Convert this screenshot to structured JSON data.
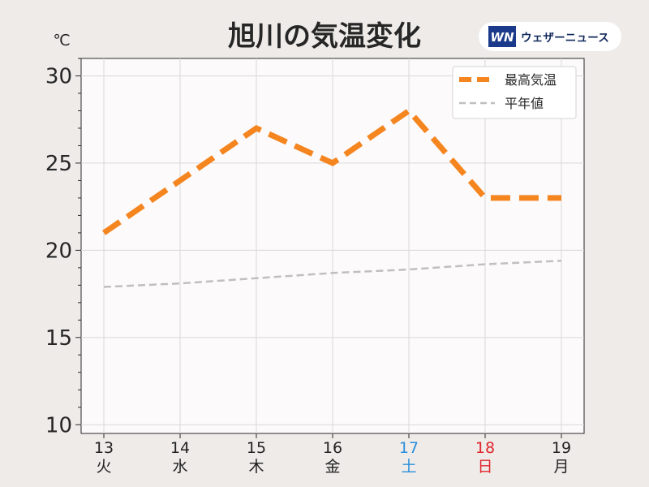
{
  "brand": {
    "name": "ウェザーニュース",
    "logo_text": "WN",
    "logo_color": "#1b3a8c"
  },
  "chart_data": {
    "type": "line",
    "title": "旭川の気温変化",
    "unit": "℃",
    "ylim": [
      9.5,
      31
    ],
    "yticks": [
      10,
      15,
      20,
      25,
      30
    ],
    "grid": true,
    "legend_position": "top-right",
    "categories": [
      {
        "day": "13",
        "weekday": "火",
        "color": "#222222"
      },
      {
        "day": "14",
        "weekday": "水",
        "color": "#222222"
      },
      {
        "day": "15",
        "weekday": "木",
        "color": "#222222"
      },
      {
        "day": "16",
        "weekday": "金",
        "color": "#222222"
      },
      {
        "day": "17",
        "weekday": "土",
        "color": "#2b8fdb"
      },
      {
        "day": "18",
        "weekday": "日",
        "color": "#e0262c"
      },
      {
        "day": "19",
        "weekday": "月",
        "color": "#222222"
      }
    ],
    "series": [
      {
        "name": "最高気温",
        "values": [
          21,
          24,
          27,
          25,
          28,
          23,
          23
        ],
        "color": "#f5851f",
        "style": "dashed-thick"
      },
      {
        "name": "平年値",
        "values": [
          17.9,
          18.1,
          18.4,
          18.7,
          18.9,
          19.2,
          19.4
        ],
        "color": "#c0bfbe",
        "style": "dashed-thin"
      }
    ]
  }
}
